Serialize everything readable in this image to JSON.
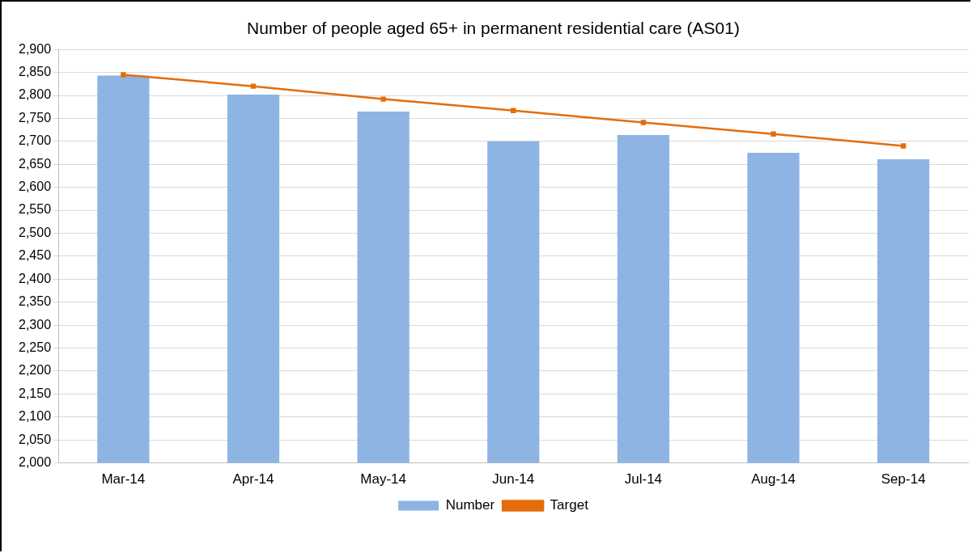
{
  "chart_data": {
    "type": "bar",
    "title": "Number of people aged 65+ in permanent residential care (AS01)",
    "categories": [
      "Mar-14",
      "Apr-14",
      "May-14",
      "Jun-14",
      "Jul-14",
      "Aug-14",
      "Sep-14"
    ],
    "series": [
      {
        "name": "Number",
        "color": "#8eb4e3",
        "values": [
          2843,
          2802,
          2765,
          2700,
          2714,
          2675,
          2661
        ]
      },
      {
        "name": "Target",
        "type": "line",
        "color": "#e46c0a",
        "values": [
          2845,
          2820,
          2792,
          2767,
          2741,
          2716,
          2690
        ]
      }
    ],
    "ylim": [
      2000,
      2900
    ],
    "yticks": [
      {
        "value": 2000,
        "label": "2,000"
      },
      {
        "value": 2050,
        "label": "2,050"
      },
      {
        "value": 2100,
        "label": "2,100"
      },
      {
        "value": 2150,
        "label": "2,150"
      },
      {
        "value": 2200,
        "label": "2,200"
      },
      {
        "value": 2250,
        "label": "2,250"
      },
      {
        "value": 2300,
        "label": "2,300"
      },
      {
        "value": 2350,
        "label": "2,350"
      },
      {
        "value": 2400,
        "label": "2,400"
      },
      {
        "value": 2450,
        "label": "2,450"
      },
      {
        "value": 2500,
        "label": "2,500"
      },
      {
        "value": 2550,
        "label": "2,550"
      },
      {
        "value": 2600,
        "label": "2,600"
      },
      {
        "value": 2650,
        "label": "2,650"
      },
      {
        "value": 2700,
        "label": "2,700"
      },
      {
        "value": 2750,
        "label": "2,750"
      },
      {
        "value": 2800,
        "label": "2,800"
      },
      {
        "value": 2850,
        "label": "2,850"
      },
      {
        "value": 2900,
        "label": "2,900"
      }
    ],
    "grid": "y",
    "legend": "bottom",
    "marker": "square",
    "line_style": "solid"
  }
}
